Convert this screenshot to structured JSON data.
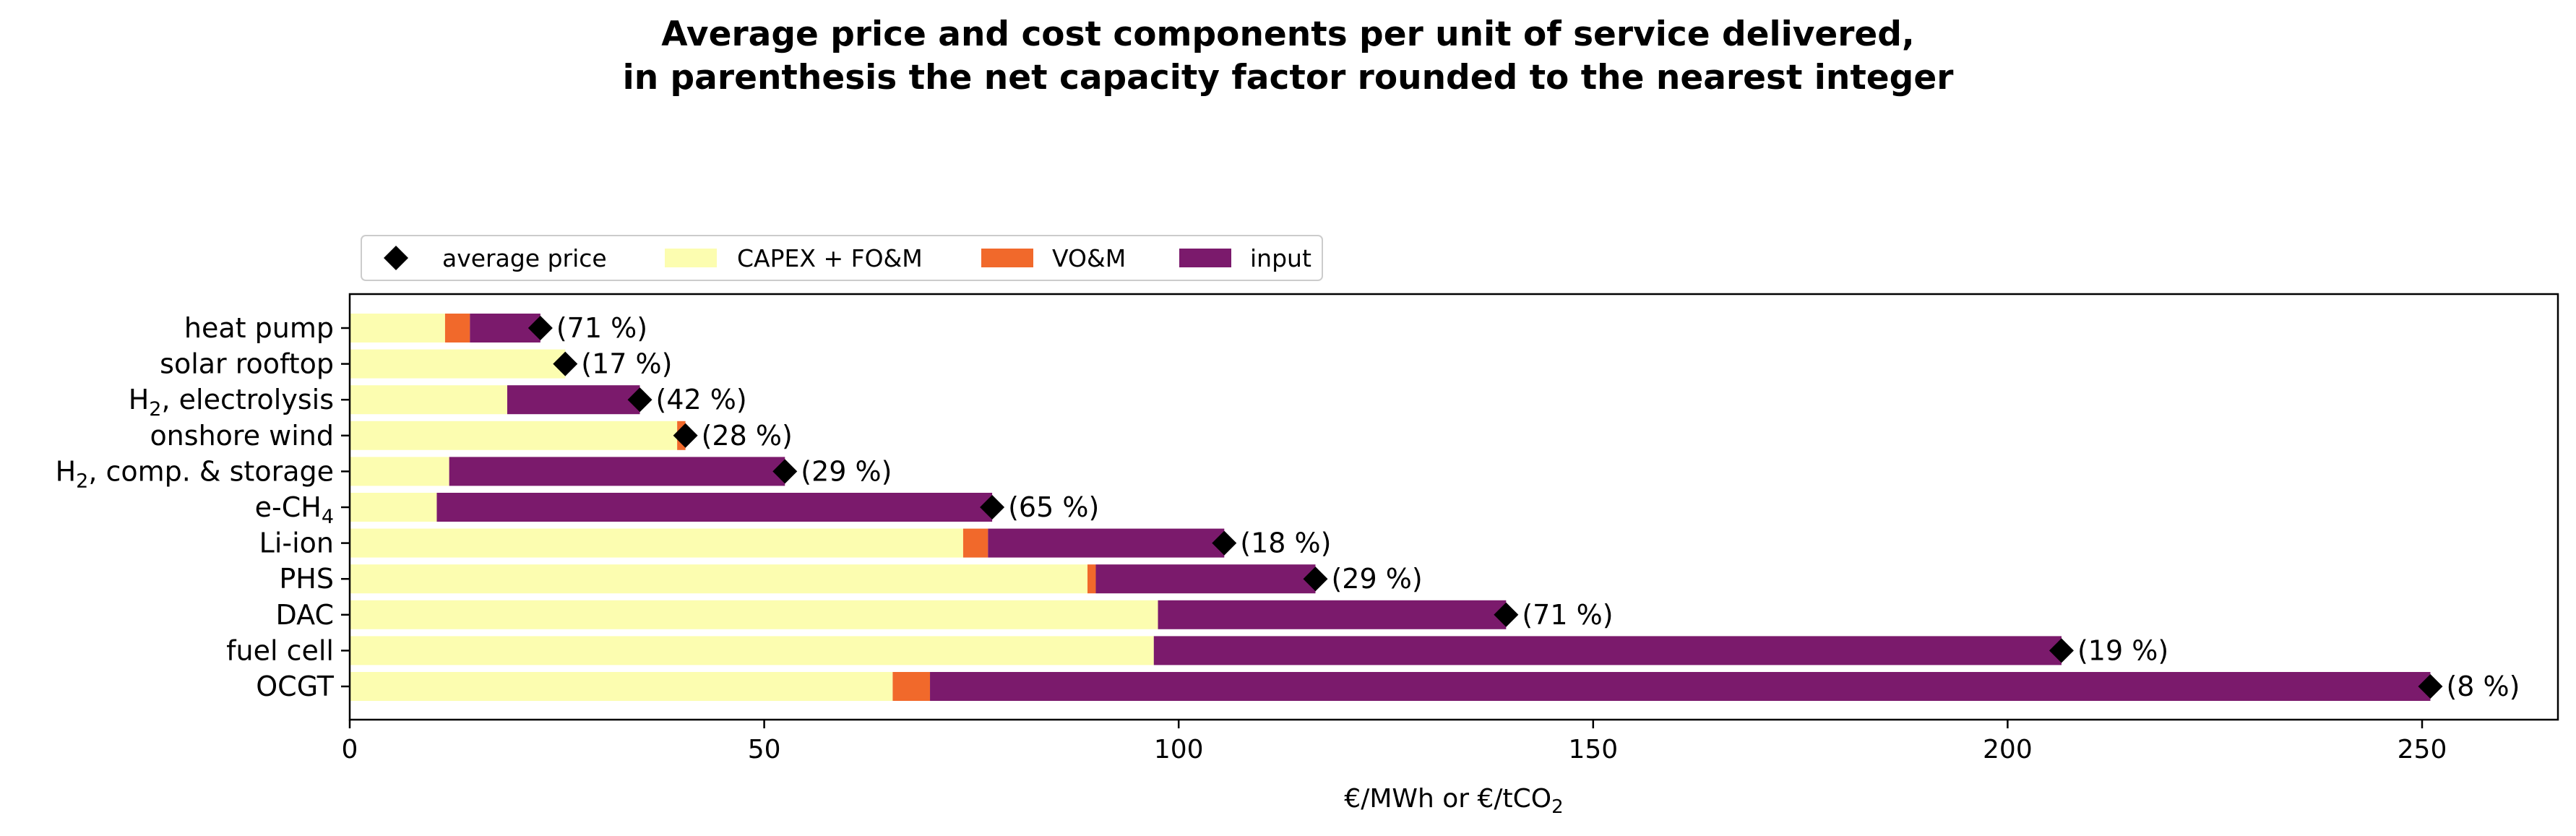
{
  "chart_data": {
    "type": "bar",
    "orientation": "horizontal",
    "stacked": true,
    "title_line1": "Average price and cost components per unit of service delivered,",
    "title_line2": "in parenthesis the net capacity factor rounded to the nearest integer",
    "xlabel_pre": "€/MWh or €/tCO",
    "xlabel_sub": "2",
    "xlim": [
      0,
      263
    ],
    "xticks": [
      0,
      50,
      100,
      150,
      200,
      250
    ],
    "grid": false,
    "legend_placement": "top-left, above plot",
    "legend": {
      "avg": "average price",
      "capex": "CAPEX + FO&M",
      "vom": "VO&M",
      "input": "input"
    },
    "colors": {
      "capex": "#fcfdb0",
      "vom": "#f1692b",
      "input": "#7b1a6c",
      "avg": "#000000"
    },
    "categories": [
      {
        "label": "heat pump",
        "capex": 11.5,
        "vom": 3.0,
        "input": 8.5,
        "avg": 23.0,
        "pct": "(71 %)"
      },
      {
        "label": "solar rooftop",
        "capex": 26.0,
        "vom": 0.0,
        "input": 0.0,
        "avg": 26.0,
        "pct": "(17 %)"
      },
      {
        "label": "H",
        "sub": "2",
        "post": ", electrolysis",
        "capex": 19.0,
        "vom": 0.0,
        "input": 16.0,
        "avg": 35.0,
        "pct": "(42 %)"
      },
      {
        "label": "onshore wind",
        "capex": 39.5,
        "vom": 1.0,
        "input": 0.0,
        "avg": 40.5,
        "pct": "(28 %)"
      },
      {
        "label": "H",
        "sub": "2",
        "post": ", comp. & storage",
        "capex": 12.0,
        "vom": 0.0,
        "input": 40.5,
        "avg": 52.5,
        "pct": "(29 %)"
      },
      {
        "label": "e-CH",
        "sub": "4",
        "post": "",
        "capex": 10.5,
        "vom": 0.0,
        "input": 67.0,
        "avg": 77.5,
        "pct": "(65 %)"
      },
      {
        "label": "Li-ion",
        "capex": 74.0,
        "vom": 3.0,
        "input": 28.5,
        "avg": 105.5,
        "pct": "(18 %)"
      },
      {
        "label": "PHS",
        "capex": 89.0,
        "vom": 1.0,
        "input": 26.5,
        "avg": 116.5,
        "pct": "(29 %)"
      },
      {
        "label": "DAC",
        "capex": 97.5,
        "vom": 0.0,
        "input": 42.0,
        "avg": 139.5,
        "pct": "(71 %)"
      },
      {
        "label": "fuel cell",
        "capex": 97.0,
        "vom": 0.0,
        "input": 109.5,
        "avg": 206.5,
        "pct": "(19 %)"
      },
      {
        "label": "OCGT",
        "capex": 65.5,
        "vom": 4.5,
        "input": 181.0,
        "avg": 251.0,
        "pct": "(8 %)"
      }
    ]
  }
}
